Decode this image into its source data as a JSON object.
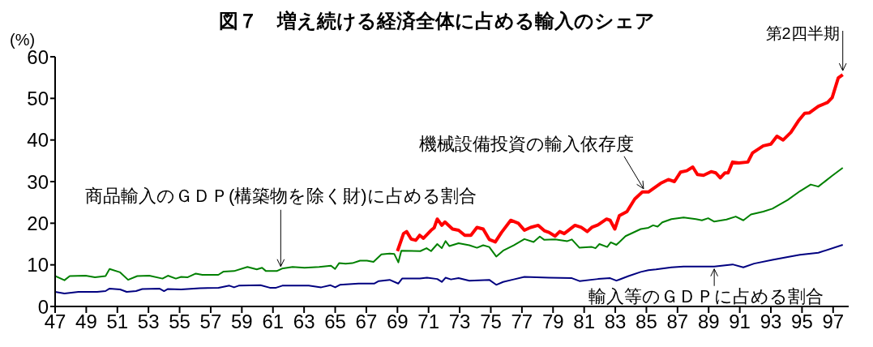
{
  "chart_data": {
    "type": "line",
    "title": "図７　増え続ける経済全体に占める輸入のシェア",
    "ylabel": "(%)",
    "xlim": [
      1947,
      1998
    ],
    "xticks": [
      {
        "value": 1947,
        "label": "47"
      },
      {
        "value": 1949,
        "label": "49"
      },
      {
        "value": 1951,
        "label": "51"
      },
      {
        "value": 1953,
        "label": "53"
      },
      {
        "value": 1955,
        "label": "55"
      },
      {
        "value": 1957,
        "label": "57"
      },
      {
        "value": 1959,
        "label": "59"
      },
      {
        "value": 1961,
        "label": "61"
      },
      {
        "value": 1963,
        "label": "63"
      },
      {
        "value": 1965,
        "label": "65"
      },
      {
        "value": 1967,
        "label": "67"
      },
      {
        "value": 1969,
        "label": "69"
      },
      {
        "value": 1971,
        "label": "71"
      },
      {
        "value": 1973,
        "label": "73"
      },
      {
        "value": 1975,
        "label": "75"
      },
      {
        "value": 1977,
        "label": "77"
      },
      {
        "value": 1979,
        "label": "79"
      },
      {
        "value": 1981,
        "label": "81"
      },
      {
        "value": 1983,
        "label": "83"
      },
      {
        "value": 1985,
        "label": "85"
      },
      {
        "value": 1987,
        "label": "87"
      },
      {
        "value": 1989,
        "label": "89"
      },
      {
        "value": 1991,
        "label": "91"
      },
      {
        "value": 1993,
        "label": "93"
      },
      {
        "value": 1995,
        "label": "95"
      },
      {
        "value": 1997,
        "label": "97"
      }
    ],
    "ylim": [
      0,
      60
    ],
    "yticks": [
      0,
      10,
      20,
      30,
      40,
      50,
      60
    ],
    "marker": "none",
    "line_style": "solid",
    "series": [
      {
        "color": "#ff0000",
        "x": [
          1969.0,
          1969.39,
          1969.59,
          1969.88,
          1970.18,
          1970.43,
          1970.67,
          1971.16,
          1971.36,
          1971.56,
          1971.85,
          1972.05,
          1972.54,
          1972.93,
          1973.33,
          1973.72,
          1974.11,
          1974.51,
          1974.9,
          1975.29,
          1975.69,
          1976.28,
          1976.77,
          1977.16,
          1977.56,
          1978.05,
          1978.44,
          1978.74,
          1979.13,
          1979.43,
          1979.72,
          1980.41,
          1980.81,
          1981.2,
          1981.49,
          1981.89,
          1982.44,
          1982.67,
          1982.97,
          1983.26,
          1983.75,
          1984.25,
          1984.74,
          1985.13,
          1985.92,
          1986.41,
          1986.8,
          1987.2,
          1987.59,
          1987.98,
          1988.28,
          1988.67,
          1989.16,
          1989.46,
          1989.75,
          1990.05,
          1990.25,
          1990.54,
          1990.94,
          1991.52,
          1991.82,
          1992.51,
          1993.0,
          1993.39,
          1993.79,
          1994.28,
          1994.77,
          1995.17,
          1995.46,
          1996.05,
          1996.64,
          1996.94,
          1997.33,
          1997.62
        ],
        "values": [
          13.3,
          17.5,
          18.0,
          16.2,
          15.9,
          17.1,
          16.4,
          18.3,
          18.9,
          21.0,
          19.5,
          20.3,
          18.6,
          18.3,
          17.1,
          17.1,
          19.0,
          18.6,
          16.1,
          15.5,
          17.8,
          20.7,
          20.0,
          18.3,
          19.0,
          19.5,
          18.2,
          17.8,
          16.9,
          18.0,
          17.5,
          19.5,
          19.0,
          18.0,
          19.0,
          19.6,
          21.0,
          20.7,
          18.6,
          21.8,
          22.8,
          25.8,
          27.5,
          27.5,
          29.6,
          30.5,
          30.0,
          32.3,
          32.6,
          33.5,
          31.7,
          31.5,
          32.4,
          32.1,
          30.9,
          32.1,
          32.1,
          34.7,
          34.5,
          34.7,
          36.9,
          38.6,
          39.0,
          40.9,
          40.0,
          41.8,
          44.6,
          46.4,
          46.5,
          48.1,
          49.0,
          50.2,
          54.9,
          55.7
        ]
      },
      {
        "color": "#008000",
        "x": [
          1947.0,
          1947.6,
          1947.94,
          1948.96,
          1949.56,
          1950.24,
          1950.5,
          1951.18,
          1951.69,
          1952.28,
          1953.05,
          1953.9,
          1954.25,
          1954.76,
          1955.1,
          1955.5,
          1956.04,
          1956.46,
          1957.06,
          1957.49,
          1957.83,
          1958.5,
          1959.36,
          1959.96,
          1960.3,
          1960.55,
          1961.24,
          1961.58,
          1962.26,
          1963.03,
          1963.97,
          1964.73,
          1964.99,
          1965.25,
          1965.67,
          1966.1,
          1966.6,
          1967.04,
          1967.46,
          1967.97,
          1968.5,
          1968.8,
          1969.06,
          1969.25,
          1970.47,
          1970.87,
          1971.16,
          1971.56,
          1971.85,
          1972.09,
          1972.34,
          1972.93,
          1973.62,
          1974.11,
          1974.51,
          1974.9,
          1975.35,
          1975.79,
          1976.47,
          1977.16,
          1977.75,
          1978.15,
          1978.44,
          1979.13,
          1979.92,
          1980.21,
          1980.7,
          1981.49,
          1981.73,
          1981.98,
          1982.48,
          1982.71,
          1983.07,
          1983.66,
          1984.64,
          1985.13,
          1985.43,
          1985.72,
          1986.02,
          1986.61,
          1987.39,
          1988.18,
          1988.57,
          1988.97,
          1989.36,
          1990.15,
          1990.74,
          1991.23,
          1991.72,
          1992.51,
          1993.1,
          1994.08,
          1994.87,
          1995.56,
          1996.05,
          1996.94,
          1997.62
        ],
        "values": [
          7.3,
          6.3,
          7.3,
          7.4,
          7.0,
          7.3,
          9.0,
          8.2,
          6.4,
          7.3,
          7.4,
          6.7,
          7.4,
          6.7,
          7.1,
          7.0,
          7.9,
          7.6,
          7.6,
          7.6,
          8.4,
          8.5,
          9.5,
          8.9,
          9.3,
          8.5,
          8.5,
          9.1,
          9.5,
          9.3,
          9.5,
          9.8,
          9.0,
          10.4,
          10.3,
          10.4,
          11.0,
          11.0,
          10.7,
          12.5,
          12.7,
          12.6,
          10.6,
          13.4,
          13.3,
          14.0,
          13.3,
          15.0,
          14.0,
          15.7,
          14.5,
          15.2,
          14.7,
          14.1,
          14.7,
          14.3,
          12.0,
          13.4,
          14.7,
          16.2,
          15.5,
          16.8,
          16.0,
          16.1,
          15.7,
          16.1,
          14.1,
          14.3,
          14.0,
          15.0,
          14.3,
          15.4,
          14.8,
          16.9,
          18.6,
          18.9,
          19.5,
          19.2,
          20.2,
          21.0,
          21.4,
          21.0,
          20.7,
          21.2,
          20.4,
          20.9,
          21.6,
          20.7,
          22.1,
          22.8,
          23.5,
          25.6,
          27.7,
          29.3,
          28.8,
          31.4,
          33.3
        ]
      },
      {
        "color": "#000080",
        "x": [
          1947.0,
          1947.6,
          1948.5,
          1949.7,
          1950.24,
          1950.5,
          1951.18,
          1951.6,
          1952.2,
          1952.6,
          1953.7,
          1954.0,
          1954.25,
          1955.1,
          1956.3,
          1957.5,
          1958.2,
          1958.5,
          1958.8,
          1960.2,
          1960.8,
          1961.2,
          1961.6,
          1963.3,
          1964.1,
          1964.7,
          1965.0,
          1965.3,
          1966.5,
          1967.5,
          1967.8,
          1968.5,
          1969.05,
          1969.3,
          1970.44,
          1970.9,
          1971.56,
          1971.85,
          1972.09,
          1972.44,
          1972.93,
          1973.62,
          1974.9,
          1975.35,
          1975.79,
          1976.47,
          1977.16,
          1978.74,
          1980.21,
          1980.7,
          1981.89,
          1982.67,
          1983.07,
          1983.85,
          1984.64,
          1985.13,
          1985.62,
          1986.61,
          1987.39,
          1989.36,
          1990.54,
          1991.23,
          1991.92,
          1993.1,
          1994.08,
          1994.87,
          1996.05,
          1997.62
        ],
        "values": [
          3.5,
          3.1,
          3.5,
          3.5,
          3.7,
          4.3,
          4.1,
          3.5,
          3.7,
          4.2,
          4.3,
          3.7,
          4.2,
          4.1,
          4.4,
          4.5,
          5.0,
          4.6,
          5.0,
          5.1,
          4.5,
          4.5,
          5.0,
          5.0,
          4.6,
          5.1,
          4.6,
          5.2,
          5.5,
          5.5,
          6.1,
          6.4,
          5.5,
          6.7,
          6.7,
          6.9,
          6.6,
          5.9,
          6.9,
          6.5,
          6.8,
          6.2,
          6.4,
          5.2,
          5.9,
          6.5,
          7.1,
          6.9,
          6.8,
          6.1,
          6.6,
          6.8,
          6.2,
          7.3,
          8.3,
          8.7,
          8.9,
          9.4,
          9.6,
          9.6,
          10.1,
          9.4,
          10.3,
          11.2,
          11.9,
          12.4,
          12.9,
          14.8
        ]
      }
    ],
    "annotations": [
      {
        "text": "商品輸入のＧＤＰ(構築物を除く財)に占める割合",
        "x": 1961.5,
        "y": 9.2
      },
      {
        "text": "機械設備投資の輸入依存度",
        "x": 1985.13,
        "y": 27.5
      },
      {
        "text": "輸入等のＧＤＰに占める割合",
        "x": 1989.36,
        "y": 9.6
      },
      {
        "text": "第2四半期",
        "x": 1997.62,
        "y": 55.7
      }
    ]
  }
}
